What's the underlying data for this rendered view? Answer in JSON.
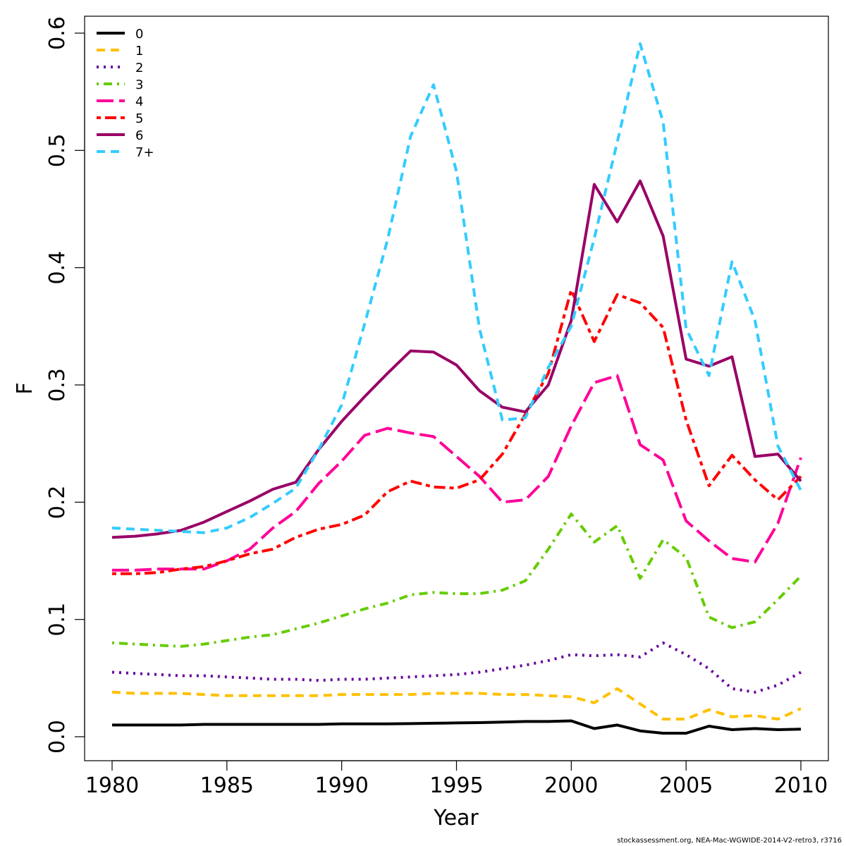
{
  "chart_data": {
    "type": "line",
    "xlabel": "Year",
    "ylabel": "F",
    "xlim": [
      1980,
      2010
    ],
    "ylim": [
      0,
      0.6
    ],
    "x_ticks": [
      1980,
      1985,
      1990,
      1995,
      2000,
      2005,
      2010
    ],
    "y_ticks": [
      "0.0",
      "0.1",
      "0.2",
      "0.3",
      "0.4",
      "0.5",
      "0.6"
    ],
    "grid": false,
    "legend_position": "top-left",
    "x": [
      1980,
      1981,
      1982,
      1983,
      1984,
      1985,
      1986,
      1987,
      1988,
      1989,
      1990,
      1991,
      1992,
      1993,
      1994,
      1995,
      1996,
      1997,
      1998,
      1999,
      2000,
      2001,
      2002,
      2003,
      2004,
      2005,
      2006,
      2007,
      2008,
      2009,
      2010
    ],
    "series": [
      {
        "name": "0",
        "color": "#000000",
        "dash": "solid",
        "values": [
          0.01,
          0.01,
          0.01,
          0.01,
          0.0105,
          0.0105,
          0.0105,
          0.0105,
          0.0105,
          0.0105,
          0.011,
          0.011,
          0.011,
          0.0112,
          0.0115,
          0.0118,
          0.012,
          0.0125,
          0.013,
          0.013,
          0.0135,
          0.007,
          0.01,
          0.005,
          0.003,
          0.003,
          0.009,
          0.006,
          0.007,
          0.006,
          0.0065
        ]
      },
      {
        "name": "1",
        "color": "#FFC000",
        "dash": "dashed",
        "values": [
          0.038,
          0.037,
          0.037,
          0.037,
          0.036,
          0.035,
          0.035,
          0.035,
          0.035,
          0.035,
          0.036,
          0.036,
          0.036,
          0.036,
          0.037,
          0.037,
          0.037,
          0.036,
          0.036,
          0.035,
          0.034,
          0.029,
          0.041,
          0.028,
          0.015,
          0.015,
          0.023,
          0.017,
          0.018,
          0.015,
          0.024
        ]
      },
      {
        "name": "2",
        "color": "#660099",
        "dash": "dotted",
        "values": [
          0.055,
          0.054,
          0.053,
          0.052,
          0.052,
          0.051,
          0.05,
          0.049,
          0.049,
          0.048,
          0.049,
          0.049,
          0.05,
          0.051,
          0.052,
          0.053,
          0.055,
          0.058,
          0.061,
          0.065,
          0.07,
          0.069,
          0.07,
          0.068,
          0.08,
          0.07,
          0.058,
          0.041,
          0.038,
          0.044,
          0.055
        ]
      },
      {
        "name": "3",
        "color": "#66CC00",
        "dash": "dotdash",
        "values": [
          0.08,
          0.079,
          0.078,
          0.077,
          0.079,
          0.082,
          0.085,
          0.087,
          0.092,
          0.097,
          0.103,
          0.109,
          0.114,
          0.121,
          0.123,
          0.122,
          0.122,
          0.125,
          0.133,
          0.16,
          0.19,
          0.166,
          0.18,
          0.135,
          0.168,
          0.153,
          0.102,
          0.093,
          0.098,
          0.117,
          0.137
        ]
      },
      {
        "name": "4",
        "color": "#FF0099",
        "dash": "longdash",
        "values": [
          0.142,
          0.142,
          0.143,
          0.143,
          0.143,
          0.15,
          0.16,
          0.178,
          0.192,
          0.216,
          0.235,
          0.257,
          0.263,
          0.259,
          0.256,
          0.239,
          0.222,
          0.2,
          0.202,
          0.222,
          0.265,
          0.302,
          0.308,
          0.249,
          0.236,
          0.184,
          0.167,
          0.152,
          0.149,
          0.182,
          0.238
        ]
      },
      {
        "name": "5",
        "color": "#FF0000",
        "dash": "twodash",
        "values": [
          0.139,
          0.139,
          0.14,
          0.143,
          0.145,
          0.15,
          0.156,
          0.16,
          0.17,
          0.177,
          0.181,
          0.189,
          0.209,
          0.218,
          0.213,
          0.212,
          0.219,
          0.241,
          0.275,
          0.31,
          0.381,
          0.337,
          0.377,
          0.37,
          0.349,
          0.27,
          0.214,
          0.24,
          0.219,
          0.202,
          0.222
        ]
      },
      {
        "name": "6",
        "color": "#990066",
        "dash": "solid",
        "values": [
          0.17,
          0.171,
          0.173,
          0.176,
          0.183,
          0.192,
          0.201,
          0.211,
          0.217,
          0.245,
          0.269,
          0.29,
          0.31,
          0.329,
          0.328,
          0.317,
          0.295,
          0.281,
          0.277,
          0.3,
          0.355,
          0.471,
          0.439,
          0.474,
          0.427,
          0.322,
          0.316,
          0.324,
          0.239,
          0.241,
          0.218
        ]
      },
      {
        "name": "7+",
        "color": "#33CCFF",
        "dash": "dashed",
        "values": [
          0.178,
          0.177,
          0.176,
          0.175,
          0.174,
          0.178,
          0.187,
          0.199,
          0.212,
          0.245,
          0.283,
          0.352,
          0.424,
          0.512,
          0.556,
          0.482,
          0.348,
          0.27,
          0.272,
          0.315,
          0.35,
          0.425,
          0.507,
          0.591,
          0.524,
          0.348,
          0.308,
          0.405,
          0.355,
          0.248,
          0.21
        ]
      }
    ]
  },
  "credit": "stockassessment.org, NEA-Mac-WGWIDE-2014-V2-retro3, r3716"
}
